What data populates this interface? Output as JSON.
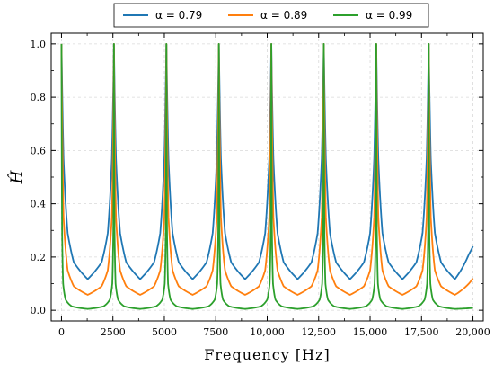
{
  "chart_data": {
    "type": "line",
    "xlabel": "Frequency [Hz]",
    "ylabel": "Ĥ",
    "xlim": [
      -500,
      20500
    ],
    "ylim": [
      -0.04,
      1.04
    ],
    "xticks": [
      0,
      2500,
      5000,
      7500,
      10000,
      12500,
      15000,
      17500,
      20000
    ],
    "xtick_labels": [
      "0",
      "2500",
      "5000",
      "7500",
      "10,000",
      "12,500",
      "15,000",
      "17,500",
      "20,000"
    ],
    "yticks": [
      0.0,
      0.2,
      0.4,
      0.6,
      0.8,
      1.0
    ],
    "ytick_labels": [
      "0.0",
      "0.2",
      "0.4",
      "0.6",
      "0.8",
      "1.0"
    ],
    "grid": true,
    "legend_position": "top-center",
    "peak_frequencies": [
      0,
      2550,
      5100,
      7650,
      10200,
      12750,
      15300,
      17850
    ],
    "series": [
      {
        "legend_label": "α = 0.79",
        "alpha": 0.79,
        "color": "#1f77b4",
        "x": [
          0,
          100,
          300,
          600,
          1275,
          1950,
          2250,
          2450,
          2550,
          2650,
          2850,
          3150,
          3825,
          4500,
          4800,
          5000,
          5100,
          5200,
          5400,
          5700,
          6375,
          7050,
          7350,
          7550,
          7650,
          7750,
          7950,
          8250,
          8925,
          9600,
          9900,
          10100,
          10200,
          10300,
          10500,
          10800,
          11475,
          12150,
          12450,
          12650,
          12750,
          12850,
          13050,
          13350,
          14025,
          14700,
          15000,
          15200,
          15300,
          15400,
          15600,
          15900,
          16575,
          17250,
          17550,
          17750,
          17850,
          17950,
          18150,
          18450,
          19125,
          19800,
          20000
        ],
        "y": [
          1.0,
          0.57,
          0.29,
          0.18,
          0.117,
          0.18,
          0.29,
          0.57,
          1.0,
          0.57,
          0.29,
          0.18,
          0.117,
          0.18,
          0.29,
          0.57,
          1.0,
          0.57,
          0.29,
          0.18,
          0.117,
          0.18,
          0.29,
          0.57,
          1.0,
          0.57,
          0.29,
          0.18,
          0.117,
          0.18,
          0.29,
          0.57,
          1.0,
          0.57,
          0.29,
          0.18,
          0.117,
          0.18,
          0.29,
          0.57,
          1.0,
          0.57,
          0.29,
          0.18,
          0.117,
          0.18,
          0.29,
          0.57,
          1.0,
          0.57,
          0.29,
          0.18,
          0.117,
          0.18,
          0.29,
          0.57,
          1.0,
          0.57,
          0.29,
          0.18,
          0.117,
          0.21,
          0.24
        ]
      },
      {
        "legend_label": "α = 0.89",
        "alpha": 0.89,
        "color": "#ff7f0e",
        "x": [
          0,
          100,
          300,
          600,
          1275,
          1950,
          2250,
          2450,
          2550,
          2650,
          2850,
          3150,
          3825,
          4500,
          4800,
          5000,
          5100,
          5200,
          5400,
          5700,
          6375,
          7050,
          7350,
          7550,
          7650,
          7750,
          7950,
          8250,
          8925,
          9600,
          9900,
          10100,
          10200,
          10300,
          10500,
          10800,
          11475,
          12150,
          12450,
          12650,
          12750,
          12850,
          13050,
          13350,
          14025,
          14700,
          15000,
          15200,
          15300,
          15400,
          15600,
          15900,
          16575,
          17250,
          17550,
          17750,
          17850,
          17950,
          18150,
          18450,
          19125,
          19800,
          20000
        ],
        "y": [
          1.0,
          0.35,
          0.15,
          0.09,
          0.058,
          0.09,
          0.15,
          0.35,
          1.0,
          0.35,
          0.15,
          0.09,
          0.058,
          0.09,
          0.15,
          0.35,
          1.0,
          0.35,
          0.15,
          0.09,
          0.058,
          0.09,
          0.15,
          0.35,
          1.0,
          0.35,
          0.15,
          0.09,
          0.058,
          0.09,
          0.15,
          0.35,
          1.0,
          0.35,
          0.15,
          0.09,
          0.058,
          0.09,
          0.15,
          0.35,
          1.0,
          0.35,
          0.15,
          0.09,
          0.058,
          0.09,
          0.15,
          0.35,
          1.0,
          0.35,
          0.15,
          0.09,
          0.058,
          0.09,
          0.15,
          0.35,
          1.0,
          0.35,
          0.15,
          0.09,
          0.058,
          0.1,
          0.12
        ]
      },
      {
        "legend_label": "α = 0.99",
        "alpha": 0.99,
        "color": "#2ca02c",
        "x": [
          0,
          30,
          80,
          200,
          500,
          1275,
          2050,
          2350,
          2470,
          2520,
          2550,
          2580,
          2630,
          2750,
          3050,
          3825,
          4600,
          4900,
          5020,
          5070,
          5100,
          5130,
          5180,
          5300,
          5600,
          6375,
          7150,
          7450,
          7570,
          7620,
          7650,
          7680,
          7730,
          7850,
          8150,
          8925,
          9700,
          10000,
          10120,
          10170,
          10200,
          10230,
          10280,
          10400,
          10700,
          11475,
          12250,
          12550,
          12670,
          12720,
          12750,
          12780,
          12830,
          12950,
          13250,
          14025,
          14800,
          15100,
          15220,
          15270,
          15300,
          15330,
          15380,
          15500,
          15800,
          16575,
          17350,
          17650,
          17770,
          17820,
          17850,
          17880,
          17930,
          18050,
          18350,
          19125,
          19900,
          20000
        ],
        "y": [
          1.0,
          0.3,
          0.1,
          0.04,
          0.015,
          0.005,
          0.015,
          0.04,
          0.1,
          0.3,
          1.0,
          0.3,
          0.1,
          0.04,
          0.015,
          0.005,
          0.015,
          0.04,
          0.1,
          0.3,
          1.0,
          0.3,
          0.1,
          0.04,
          0.015,
          0.005,
          0.015,
          0.04,
          0.1,
          0.3,
          1.0,
          0.3,
          0.1,
          0.04,
          0.015,
          0.005,
          0.015,
          0.04,
          0.1,
          0.3,
          1.0,
          0.3,
          0.1,
          0.04,
          0.015,
          0.005,
          0.015,
          0.04,
          0.1,
          0.3,
          1.0,
          0.3,
          0.1,
          0.04,
          0.015,
          0.005,
          0.015,
          0.04,
          0.1,
          0.3,
          1.0,
          0.3,
          0.1,
          0.04,
          0.015,
          0.005,
          0.015,
          0.04,
          0.1,
          0.3,
          1.0,
          0.3,
          0.1,
          0.04,
          0.015,
          0.005,
          0.008,
          0.01
        ]
      }
    ]
  }
}
